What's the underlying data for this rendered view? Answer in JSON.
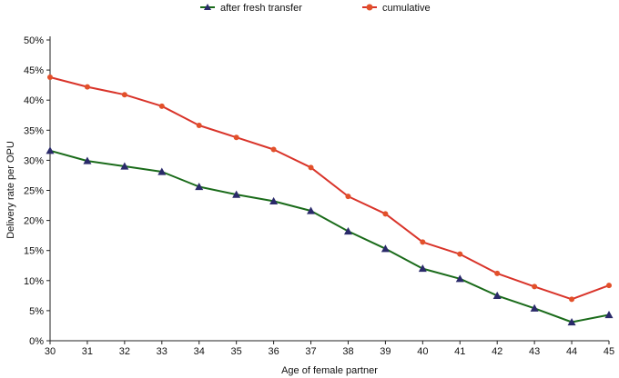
{
  "chart_data": {
    "type": "line",
    "xlabel": "Age of female partner",
    "ylabel": "Delivery rate per OPU",
    "x": [
      30,
      31,
      32,
      33,
      34,
      35,
      36,
      37,
      38,
      39,
      40,
      41,
      42,
      43,
      44,
      45
    ],
    "ylim": [
      0,
      50
    ],
    "xlim": [
      30,
      45
    ],
    "y_ticks": [
      "0%",
      "5%",
      "10%",
      "15%",
      "20%",
      "25%",
      "30%",
      "35%",
      "40%",
      "45%",
      "50%"
    ],
    "y_tick_values": [
      0,
      5,
      10,
      15,
      20,
      25,
      30,
      35,
      40,
      45,
      50
    ],
    "grid": false,
    "legend_position": "top",
    "series": [
      {
        "name": "after fresh transfer",
        "color": "#1a6b1a",
        "marker": "triangle",
        "marker_color": "#2a2a6a",
        "values": [
          31.6,
          29.9,
          29.0,
          28.1,
          25.6,
          24.3,
          23.2,
          21.6,
          18.2,
          15.3,
          12.0,
          10.3,
          7.5,
          5.4,
          3.1,
          4.3
        ]
      },
      {
        "name": "cumulative",
        "color": "#d9342a",
        "marker": "circle",
        "marker_color": "#e2502a",
        "values": [
          43.8,
          42.2,
          40.9,
          39.0,
          35.8,
          33.8,
          31.8,
          28.8,
          24.0,
          21.1,
          16.4,
          14.4,
          11.2,
          9.0,
          6.9,
          9.2
        ]
      }
    ]
  }
}
